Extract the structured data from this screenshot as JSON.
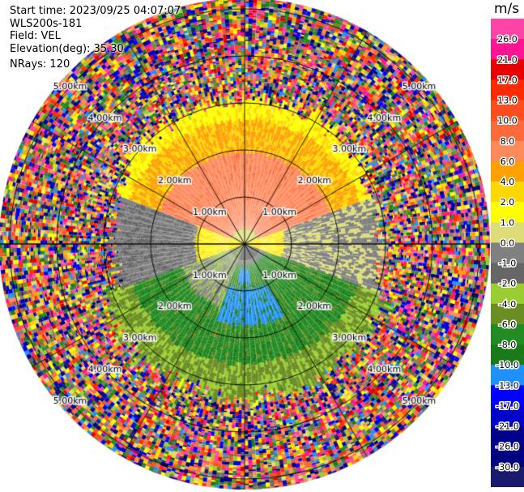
{
  "info": {
    "start_time": "Start time: 2023/09/25 04:07:07",
    "instrument": "WLS200s-181",
    "field": "Field: VEL",
    "elevation": "Elevation(deg): 35.30",
    "nrays": "NRays: 120"
  },
  "chart_data": {
    "type": "heatmap",
    "projection": "polar-ppi",
    "field": "VEL",
    "units": "m/s",
    "n_rays": 120,
    "max_range_km": 5.5,
    "range_rings_km": [
      1,
      2,
      3,
      4,
      5
    ],
    "ring_labels": {
      "1": "1.00km",
      "2": "2.00km",
      "3": "3.00km",
      "4": "4.00km",
      "5": "5.00km"
    },
    "spokes_deg": [
      0,
      30,
      60,
      90,
      120,
      150,
      180,
      210,
      240,
      270,
      300,
      330
    ],
    "colorbar": {
      "label": "m/s",
      "ticks": [
        "26.0",
        "21.0",
        "17.0",
        "13.0",
        "10.0",
        "8.0",
        "6.0",
        "4.0",
        "2.0",
        "1.0",
        "0.0",
        "-1.0",
        "-2.0",
        "-4.0",
        "-6.0",
        "-8.0",
        "-10.0",
        "-13.0",
        "-17.0",
        "-21.0",
        "-26.0",
        "-30.0"
      ],
      "colors": [
        "#ff44a8",
        "#ff1493",
        "#e60000",
        "#ff2a00",
        "#ff4d1f",
        "#ff6a3d",
        "#ff8a5c",
        "#ffa200",
        "#ffd700",
        "#ffff00",
        "#dddd77",
        "#808080",
        "#666666",
        "#9acd32",
        "#6b8e23",
        "#228b22",
        "#1a7a1a",
        "#1e90ff",
        "#0000ff",
        "#0000cd",
        "#00008b",
        "#000080",
        "#1a1a6e"
      ]
    }
  }
}
